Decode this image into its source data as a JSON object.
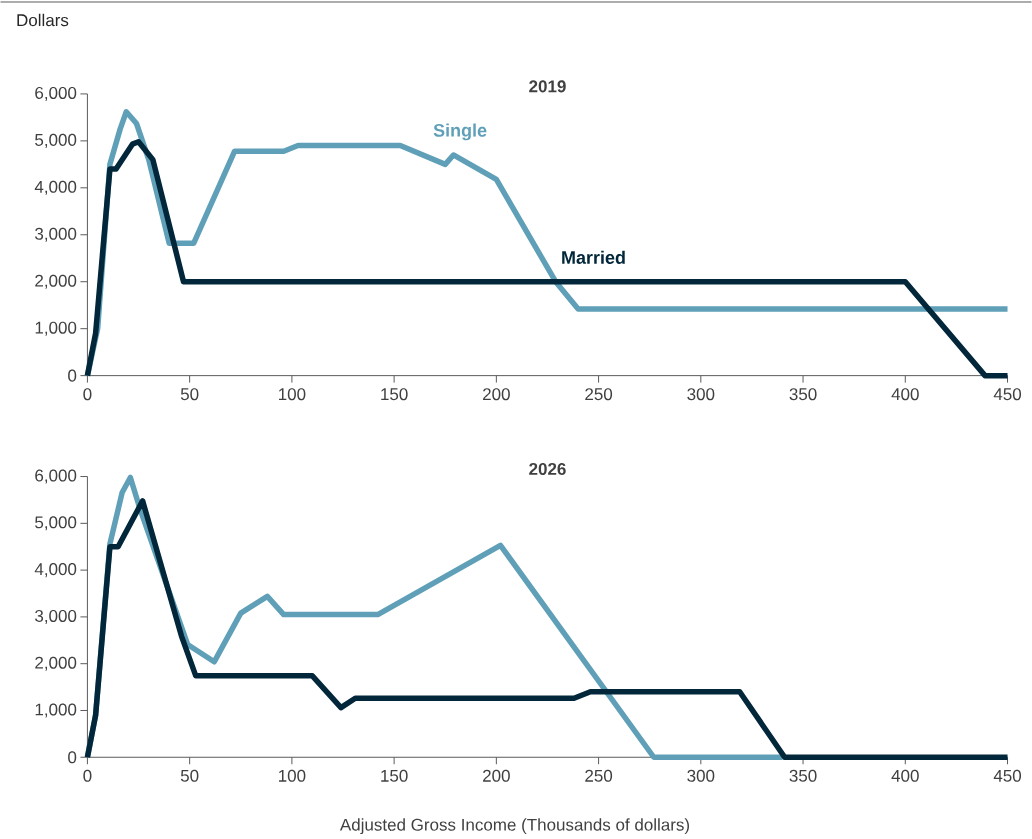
{
  "chart_data": [
    {
      "type": "line",
      "title": "2019",
      "ylabel": "Dollars",
      "xlim": [
        0,
        450
      ],
      "ylim": [
        0,
        6000
      ],
      "xticks": [
        0,
        50,
        100,
        150,
        200,
        250,
        300,
        350,
        400,
        450
      ],
      "yticks": [
        0,
        {
          "value": 1000,
          "label": "1,000"
        },
        {
          "value": 2000,
          "label": "2,000"
        },
        {
          "value": 3000,
          "label": "3,000"
        },
        {
          "value": 4000,
          "label": "4,000"
        },
        {
          "value": 5000,
          "label": "5,000"
        },
        {
          "value": 6000,
          "label": "6,000"
        }
      ],
      "series": [
        {
          "name": "Single",
          "color": "#5fa0b8",
          "x": [
            0,
            5,
            11,
            16,
            19,
            24,
            30,
            40,
            52,
            72,
            96,
            103,
            153,
            175,
            179,
            200,
            229,
            240,
            450
          ],
          "values": [
            0,
            1000,
            4500,
            5250,
            5620,
            5370,
            4600,
            2820,
            2820,
            4780,
            4780,
            4900,
            4900,
            4500,
            4700,
            4180,
            2000,
            1420,
            1420
          ]
        },
        {
          "name": "Married",
          "color": "#02263a",
          "x": [
            0,
            4,
            11,
            14,
            22,
            25,
            32,
            47,
            400,
            439,
            450
          ],
          "values": [
            0,
            900,
            4400,
            4400,
            4930,
            4980,
            4600,
            2000,
            2000,
            0,
            0
          ]
        }
      ]
    },
    {
      "type": "line",
      "title": "2026",
      "xlabel": "Adjusted Gross Income (Thousands of dollars)",
      "xlim": [
        0,
        450
      ],
      "ylim": [
        0,
        6000
      ],
      "xticks": [
        0,
        50,
        100,
        150,
        200,
        250,
        300,
        350,
        400,
        450
      ],
      "yticks": [
        0,
        {
          "value": 1000,
          "label": "1,000"
        },
        {
          "value": 2000,
          "label": "2,000"
        },
        {
          "value": 3000,
          "label": "3,000"
        },
        {
          "value": 4000,
          "label": "4,000"
        },
        {
          "value": 5000,
          "label": "5,000"
        },
        {
          "value": 6000,
          "label": "6,000"
        }
      ],
      "series": [
        {
          "color": "#5fa0b8",
          "x": [
            0,
            4,
            11,
            17,
            21,
            26,
            49,
            62,
            75,
            88,
            96,
            142,
            202,
            277,
            340
          ],
          "values": [
            0,
            900,
            4560,
            5660,
            5980,
            5270,
            2410,
            2040,
            3080,
            3440,
            3050,
            3050,
            4530,
            0,
            0
          ]
        },
        {
          "color": "#02263a",
          "x": [
            0,
            4,
            11,
            15,
            27,
            46,
            53,
            110,
            124,
            131,
            238,
            246,
            319,
            341,
            450
          ],
          "values": [
            0,
            900,
            4500,
            4500,
            5480,
            2590,
            1740,
            1740,
            1060,
            1260,
            1260,
            1400,
            1400,
            0,
            0
          ]
        }
      ]
    }
  ]
}
